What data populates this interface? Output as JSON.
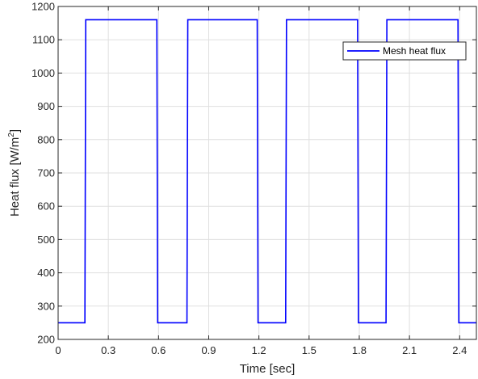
{
  "chart_data": {
    "type": "line",
    "xlabel": "Time [sec]",
    "ylabel_main": "Heat flux [W/m",
    "ylabel_sup": "2",
    "ylabel_end": "]",
    "xlim": [
      0,
      2.5
    ],
    "ylim": [
      200,
      1200
    ],
    "xticks": [
      0,
      0.3,
      0.6,
      0.9,
      1.2,
      1.5,
      1.8,
      2.1,
      2.4
    ],
    "xtick_labels": [
      "0",
      "0.3",
      "0.6",
      "0.9",
      "1.2",
      "1.5",
      "1.8",
      "2.1",
      "2.4"
    ],
    "yticks": [
      200,
      300,
      400,
      500,
      600,
      700,
      800,
      900,
      1000,
      1100,
      1200
    ],
    "ytick_labels": [
      "200",
      "300",
      "400",
      "500",
      "600",
      "700",
      "800",
      "900",
      "1000",
      "1100",
      "1200"
    ],
    "grid": true,
    "legend_position": "top-right",
    "series": [
      {
        "name": "Mesh heat flux",
        "color": "#0000ff",
        "x": [
          0,
          0.16,
          0.165,
          0.59,
          0.595,
          0.77,
          0.775,
          1.19,
          1.195,
          1.36,
          1.365,
          1.79,
          1.795,
          1.96,
          1.965,
          2.39,
          2.395,
          2.5
        ],
        "y": [
          250,
          250,
          1160,
          1160,
          250,
          250,
          1160,
          1160,
          250,
          250,
          1160,
          1160,
          250,
          250,
          1160,
          1160,
          250,
          250
        ]
      }
    ]
  }
}
